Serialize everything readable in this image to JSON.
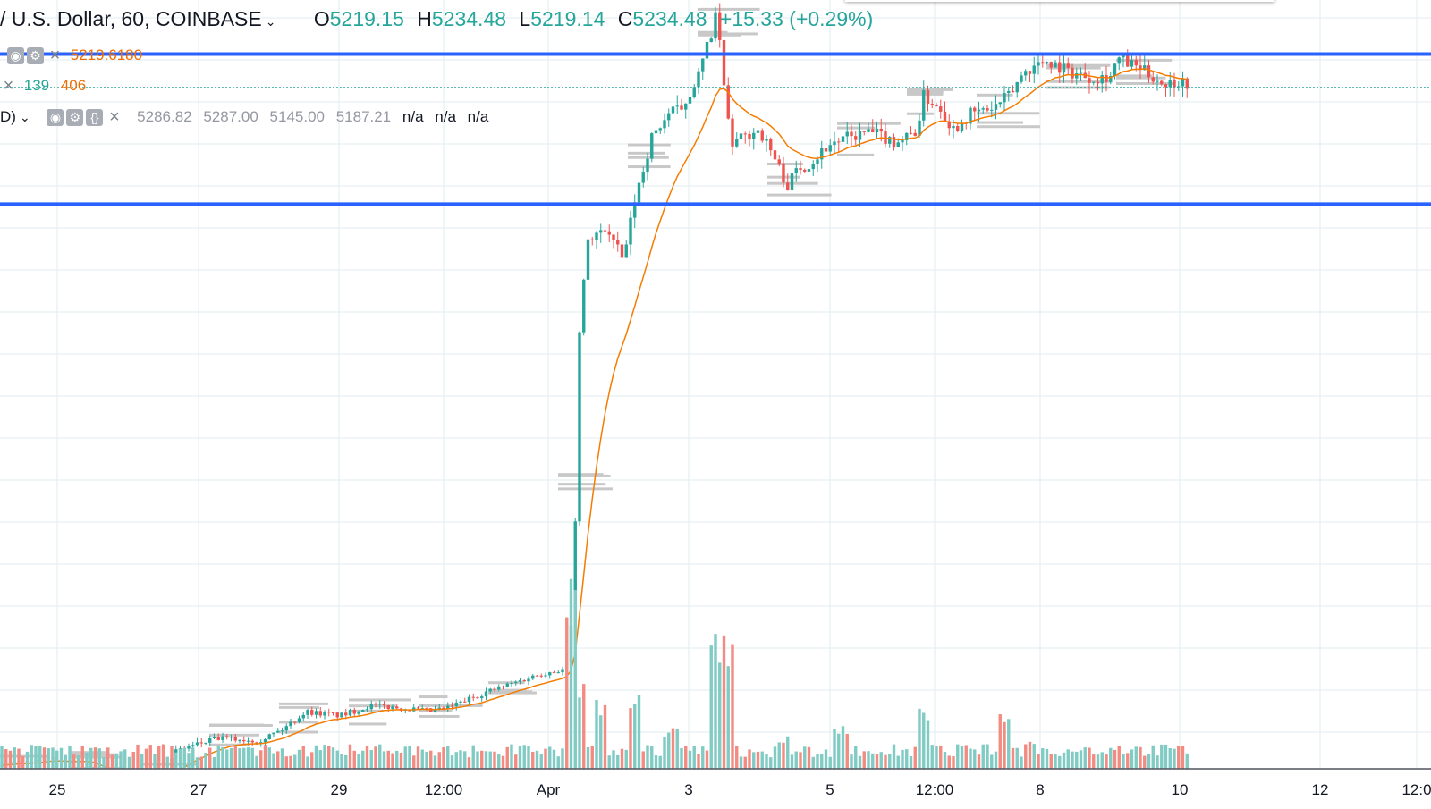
{
  "legend": {
    "symbol": "/ U.S. Dollar, 60, COINBASE",
    "open_label": "O",
    "open": "5219.15",
    "high_label": "H",
    "high": "5234.48",
    "low_label": "L",
    "low": "5219.14",
    "close_label": "C",
    "close": "5234.48",
    "change": "+15.33 (+0.29%)",
    "indicator1_value": "5219.6180",
    "indicator2_value_a": "139",
    "indicator2_value_b": "406",
    "indicator3_prefix": "D)",
    "indicator3_values": [
      "5286.82",
      "5287.00",
      "5145.00",
      "5187.21"
    ],
    "indicator3_na": [
      "n/a",
      "n/a",
      "n/a"
    ]
  },
  "colors": {
    "up": "#26a69a",
    "down": "#ef5350",
    "volume_up": "#80cbc4",
    "volume_down": "#f28b82",
    "ma": "#f57c00",
    "hline": "#2962ff",
    "grid": "#e1ecf2",
    "profile": "#c8c8c8",
    "price_line": "#26a69a"
  },
  "icons": {
    "eye": "eye-icon",
    "settings": "gear-icon",
    "source": "braces-icon",
    "close": "close-icon"
  },
  "horizontal_lines": [
    5290,
    5040
  ],
  "chart_data": {
    "type": "candlestick",
    "title": "",
    "xlabel": "",
    "ylabel": "",
    "x_ticks": [
      "25",
      "27",
      "29",
      "12:00",
      "Apr",
      "3",
      "5",
      "12:00",
      "8",
      "10",
      "12",
      "12:0"
    ],
    "ylim": [
      4040,
      5380
    ],
    "grid": true,
    "last_price": 5234.48,
    "price_path": [
      [
        0,
        4105
      ],
      [
        4,
        4115
      ],
      [
        7.5,
        4110
      ],
      [
        8.5,
        4085
      ],
      [
        12,
        4070
      ],
      [
        14,
        4090
      ],
      [
        15,
        4130
      ],
      [
        18.5,
        4150
      ],
      [
        22,
        4147
      ],
      [
        24,
        4165
      ],
      [
        26,
        4195
      ],
      [
        29,
        4188
      ],
      [
        31.5,
        4205
      ],
      [
        34.5,
        4200
      ],
      [
        36.5,
        4195
      ],
      [
        38,
        4200
      ],
      [
        41,
        4225
      ],
      [
        43,
        4238
      ],
      [
        46,
        4258
      ],
      [
        48,
        4265
      ],
      [
        48.3,
        4280
      ],
      [
        48.8,
        4390
      ],
      [
        49.2,
        4800
      ],
      [
        49.8,
        4970
      ],
      [
        51.5,
        5000
      ],
      [
        53,
        4945
      ],
      [
        54,
        5050
      ],
      [
        55.4,
        5150
      ],
      [
        56.8,
        5190
      ],
      [
        58,
        5200
      ],
      [
        59.5,
        5260
      ],
      [
        61,
        5360
      ],
      [
        61.5,
        5240
      ],
      [
        62.2,
        5140
      ],
      [
        63.2,
        5150
      ],
      [
        64.5,
        5165
      ],
      [
        65.5,
        5130
      ],
      [
        66.5,
        5090
      ],
      [
        67,
        5070
      ],
      [
        67.8,
        5100
      ],
      [
        69,
        5110
      ],
      [
        70.5,
        5140
      ],
      [
        72,
        5150
      ],
      [
        74,
        5160
      ],
      [
        76,
        5145
      ],
      [
        77,
        5150
      ],
      [
        78,
        5165
      ],
      [
        78.5,
        5220
      ],
      [
        80,
        5200
      ],
      [
        81,
        5165
      ],
      [
        82.5,
        5190
      ],
      [
        84.5,
        5200
      ],
      [
        86,
        5225
      ],
      [
        87,
        5260
      ],
      [
        89,
        5280
      ],
      [
        91,
        5260
      ],
      [
        93,
        5250
      ],
      [
        94.5,
        5255
      ],
      [
        95,
        5282
      ],
      [
        97,
        5265
      ],
      [
        99,
        5240
      ],
      [
        100,
        5245
      ],
      [
        101,
        5242
      ],
      [
        101.5,
        5234
      ]
    ],
    "volume_spikes": [
      [
        48.5,
        100
      ],
      [
        49.2,
        46
      ],
      [
        51,
        38
      ],
      [
        54,
        40
      ],
      [
        57,
        22
      ],
      [
        61,
        73
      ],
      [
        62,
        67
      ],
      [
        66.5,
        17
      ],
      [
        71.5,
        23
      ],
      [
        78.5,
        32
      ],
      [
        85.5,
        32
      ],
      [
        87.5,
        17
      ],
      [
        91,
        12
      ]
    ]
  }
}
